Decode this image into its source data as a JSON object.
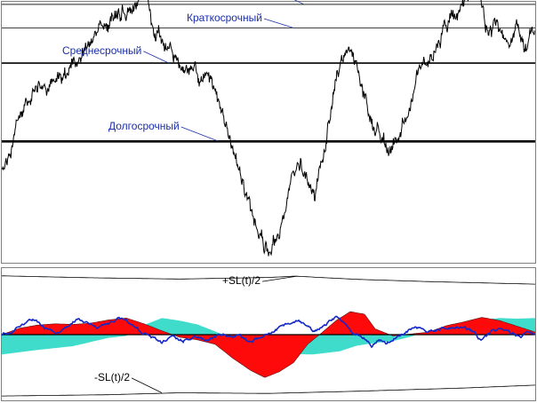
{
  "chart_data": [
    {
      "type": "line",
      "panel": "price-with-levels",
      "title": "",
      "xlabel": "",
      "ylabel": "",
      "grid": false,
      "x_range": [
        0,
        300
      ],
      "ylim": [
        0,
        100
      ],
      "series": [
        {
          "anchors": [
            [
              0,
              35
            ],
            [
              5,
              42
            ],
            [
              10,
              55
            ],
            [
              14,
              60
            ],
            [
              18,
              65
            ],
            [
              24,
              68
            ],
            [
              30,
              70
            ],
            [
              36,
              72
            ],
            [
              42,
              78
            ],
            [
              48,
              82
            ],
            [
              52,
              88
            ],
            [
              58,
              92
            ],
            [
              62,
              93
            ],
            [
              66,
              95
            ],
            [
              70,
              98
            ],
            [
              74,
              97
            ],
            [
              78,
              101
            ],
            [
              82,
              100
            ],
            [
              86,
              90
            ],
            [
              92,
              83
            ],
            [
              98,
              78
            ],
            [
              104,
              73
            ],
            [
              110,
              72
            ],
            [
              116,
              70
            ],
            [
              122,
              60
            ],
            [
              126,
              52
            ],
            [
              130,
              44
            ],
            [
              134,
              36
            ],
            [
              138,
              27
            ],
            [
              142,
              14
            ],
            [
              146,
              8
            ],
            [
              148,
              5
            ],
            [
              152,
              7
            ],
            [
              156,
              13
            ],
            [
              160,
              22
            ],
            [
              164,
              35
            ],
            [
              168,
              38
            ],
            [
              172,
              32
            ],
            [
              176,
              27
            ],
            [
              180,
              36
            ],
            [
              184,
              52
            ],
            [
              188,
              68
            ],
            [
              192,
              78
            ],
            [
              196,
              80
            ],
            [
              200,
              73
            ],
            [
              204,
              61
            ],
            [
              210,
              51
            ],
            [
              216,
              46
            ],
            [
              220,
              43
            ],
            [
              224,
              50
            ],
            [
              228,
              60
            ],
            [
              232,
              65
            ],
            [
              236,
              75
            ],
            [
              240,
              80
            ],
            [
              244,
              79
            ],
            [
              248,
              88
            ],
            [
              252,
              92
            ],
            [
              256,
              96
            ],
            [
              260,
              100
            ],
            [
              264,
              106
            ],
            [
              266,
              112
            ],
            [
              270,
              98
            ],
            [
              274,
              87
            ],
            [
              278,
              91
            ],
            [
              282,
              89
            ],
            [
              286,
              84
            ],
            [
              290,
              90
            ],
            [
              294,
              84
            ],
            [
              298,
              88
            ],
            [
              300,
              84
            ]
          ],
          "noise": 2.6
        }
      ],
      "levels": [
        {
          "label": "Среднесрочный",
          "y": 117.5,
          "color": "#1428c8",
          "style": "double"
        },
        {
          "label": "Краткосрочный",
          "y": 99,
          "color": "#000000",
          "style": "thin"
        },
        {
          "label": "Краткосрочный",
          "y": 90,
          "color": "#000000",
          "style": "thin"
        },
        {
          "label": "Среднесрочный",
          "y": 76.5,
          "color": "#000000",
          "style": "medium"
        },
        {
          "label": "Долгосрочный",
          "y": 46.5,
          "color": "#000000",
          "style": "thick"
        }
      ],
      "annotations": [
        {
          "text": "Среднесрочный",
          "at": [
            86,
            112
          ],
          "points_to": [
            148,
            117.5
          ]
        },
        {
          "text": "Долгосрочный",
          "at": [
            192,
            112
          ],
          "points_to": [
            252,
            117.5
          ]
        },
        {
          "text": "Краткосрочный",
          "at": [
            108,
            104
          ],
          "points_to": [
            170,
            99
          ]
        },
        {
          "text": "Краткосрочный",
          "at": [
            104,
            92.5
          ],
          "points_to": [
            164,
            90
          ]
        },
        {
          "text": "Среднесрочный",
          "at": [
            34,
            80
          ],
          "points_to": [
            94,
            76.5
          ]
        },
        {
          "text": "Долгосрочный",
          "at": [
            60,
            51
          ],
          "points_to": [
            122,
            46.5
          ]
        }
      ]
    },
    {
      "type": "area",
      "panel": "oscillator",
      "title": "",
      "xlabel": "",
      "ylabel": "",
      "grid": false,
      "x_range": [
        0,
        300
      ],
      "ylim": [
        -10,
        10
      ],
      "envelope_upper": [
        [
          0,
          9.2
        ],
        [
          50,
          8.9
        ],
        [
          100,
          8.7
        ],
        [
          150,
          8.95
        ],
        [
          165,
          9.15
        ],
        [
          200,
          8.65
        ],
        [
          240,
          8.3
        ],
        [
          300,
          7.9
        ]
      ],
      "envelope_lower": [
        [
          0,
          -9.6
        ],
        [
          60,
          -9.4
        ],
        [
          100,
          -9.1
        ],
        [
          150,
          -9.2
        ],
        [
          200,
          -8.85
        ],
        [
          260,
          -8.35
        ],
        [
          300,
          -7.9
        ]
      ],
      "fill_series": [
        [
          0,
          0
        ],
        [
          10,
          1
        ],
        [
          20,
          1.5
        ],
        [
          30,
          1.7
        ],
        [
          40,
          1.6
        ],
        [
          50,
          1.8
        ],
        [
          60,
          2.3
        ],
        [
          70,
          2.6
        ],
        [
          80,
          1.7
        ],
        [
          90,
          0.6
        ],
        [
          100,
          -0.4
        ],
        [
          110,
          -0.8
        ],
        [
          120,
          -1.5
        ],
        [
          130,
          -3.7
        ],
        [
          140,
          -5.6
        ],
        [
          148,
          -6.7
        ],
        [
          156,
          -5.8
        ],
        [
          164,
          -4.4
        ],
        [
          172,
          -1.5
        ],
        [
          180,
          0.3
        ],
        [
          188,
          2.2
        ],
        [
          196,
          3.6
        ],
        [
          204,
          3.2
        ],
        [
          210,
          0.9
        ],
        [
          220,
          -0.2
        ],
        [
          230,
          0.1
        ],
        [
          240,
          0.4
        ],
        [
          250,
          1.4
        ],
        [
          260,
          2.0
        ],
        [
          270,
          2.7
        ],
        [
          280,
          2.2
        ],
        [
          290,
          1.3
        ],
        [
          300,
          0.4
        ]
      ],
      "baseline_series": [
        [
          0,
          -3.1
        ],
        [
          20,
          -2.4
        ],
        [
          40,
          -1.8
        ],
        [
          60,
          -0.5
        ],
        [
          70,
          -0.2
        ],
        [
          80,
          1.5
        ],
        [
          90,
          2.6
        ],
        [
          100,
          2.2
        ],
        [
          110,
          1.6
        ],
        [
          120,
          0.5
        ],
        [
          130,
          -0.6
        ],
        [
          140,
          -1.6
        ],
        [
          150,
          -2.4
        ],
        [
          160,
          -3.0
        ],
        [
          175,
          -3.1
        ],
        [
          190,
          -2.6
        ],
        [
          200,
          -1.7
        ],
        [
          210,
          -1.3
        ],
        [
          220,
          -1.0
        ],
        [
          230,
          -0.3
        ],
        [
          240,
          0.5
        ],
        [
          250,
          1.2
        ],
        [
          260,
          1.9
        ],
        [
          270,
          2.3
        ],
        [
          280,
          2.6
        ],
        [
          290,
          2.5
        ],
        [
          300,
          2.6
        ]
      ],
      "oscillator_line": {
        "anchors": [
          [
            0,
            0
          ],
          [
            6,
            0.5
          ],
          [
            12,
            1.5
          ],
          [
            18,
            2.3
          ],
          [
            24,
            1.1
          ],
          [
            30,
            0.3
          ],
          [
            36,
            1.2
          ],
          [
            42,
            2.4
          ],
          [
            48,
            2.1
          ],
          [
            54,
            1.0
          ],
          [
            60,
            1.8
          ],
          [
            66,
            2.7
          ],
          [
            72,
            1.9
          ],
          [
            78,
            0.6
          ],
          [
            84,
            -0.3
          ],
          [
            90,
            -1.2
          ],
          [
            96,
            -0.4
          ],
          [
            102,
            -1.0
          ],
          [
            108,
            -0.2
          ],
          [
            114,
            -0.9
          ],
          [
            120,
            -0.3
          ],
          [
            126,
            0.1
          ],
          [
            130,
            -0.6
          ],
          [
            134,
            -0.3
          ],
          [
            140,
            -1.3
          ],
          [
            146,
            -0.2
          ],
          [
            152,
            0.3
          ],
          [
            158,
            1.5
          ],
          [
            164,
            2.2
          ],
          [
            170,
            1.8
          ],
          [
            176,
            0.4
          ],
          [
            182,
            1.5
          ],
          [
            188,
            2.9
          ],
          [
            192,
            2.0
          ],
          [
            196,
            0.8
          ],
          [
            200,
            0.1
          ],
          [
            204,
            -0.6
          ],
          [
            208,
            -1.6
          ],
          [
            212,
            -0.8
          ],
          [
            216,
            -1.4
          ],
          [
            220,
            -0.7
          ],
          [
            226,
            0.3
          ],
          [
            232,
            1.2
          ],
          [
            240,
            0.6
          ],
          [
            248,
            0.9
          ],
          [
            256,
            1.4
          ],
          [
            262,
            0.9
          ],
          [
            266,
            0.2
          ],
          [
            268,
            -1.0
          ],
          [
            272,
            -0.4
          ],
          [
            276,
            0.6
          ],
          [
            280,
            0.9
          ],
          [
            284,
            0.5
          ],
          [
            288,
            0.2
          ],
          [
            292,
            -0.3
          ],
          [
            296,
            0.6
          ],
          [
            300,
            0.0
          ]
        ],
        "noise": 0.35
      },
      "annotations": [
        {
          "text": "+SL(t)/2",
          "at": [
            124,
            7.9
          ],
          "points_to": [
            166,
            9.15
          ]
        },
        {
          "text": "-SL(t)/2",
          "at": [
            52,
            -7.2
          ],
          "points_to": [
            90,
            -9.1
          ]
        }
      ]
    }
  ]
}
